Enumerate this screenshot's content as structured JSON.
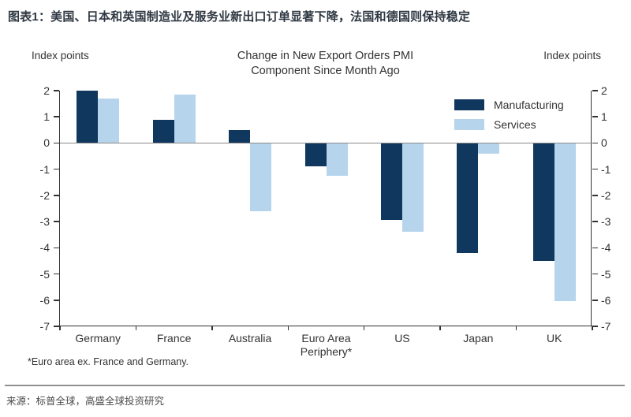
{
  "header": {
    "title": "图表1：美国、日本和英国制造业及服务业新出口订单显著下降，法国和德国则保持稳定"
  },
  "chart_data": {
    "type": "bar",
    "title": "Change in New Export Orders PMI\nComponent Since Month Ago",
    "left_axis_label": "Index points",
    "right_axis_label": "Index points",
    "categories": [
      "Germany",
      "France",
      "Australia",
      "Euro Area Periphery*",
      "US",
      "Japan",
      "UK"
    ],
    "series": [
      {
        "name": "Manufacturing",
        "color": "#10375e",
        "values": [
          2.0,
          0.9,
          0.5,
          -0.9,
          -2.95,
          -4.2,
          -4.5
        ]
      },
      {
        "name": "Services",
        "color": "#b6d5ec",
        "values": [
          1.7,
          1.85,
          -2.6,
          -1.25,
          -3.4,
          -0.4,
          -6.05
        ]
      }
    ],
    "ylim": [
      -7,
      2
    ],
    "yticks": [
      2,
      1,
      0,
      -1,
      -2,
      -3,
      -4,
      -5,
      -6,
      -7
    ],
    "zero_line_color": "#8a8a8a",
    "legend_position": "upper right",
    "grid": false
  },
  "footnote": "*Euro area ex. France and Germany.",
  "source": "来源：标普全球，高盛全球投资研究"
}
